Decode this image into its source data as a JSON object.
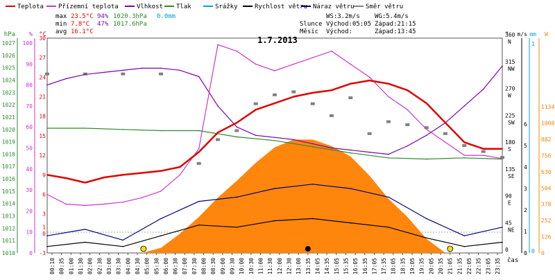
{
  "legend": [
    {
      "label": "Teplota",
      "color": "#e00000"
    },
    {
      "label": "Přízemní teplota",
      "color": "#cc33cc"
    },
    {
      "label": "Vlhkost",
      "color": "#7a00b8"
    },
    {
      "label": "Tlak",
      "color": "#2a8a2a"
    },
    {
      "label": "Srážky",
      "color": "#00a0d8"
    },
    {
      "label": "Rychlost větru",
      "color": "#000000"
    },
    {
      "label": "Náraz větru",
      "color": "#000080"
    },
    {
      "label": "Směr větru",
      "color": "#808080"
    }
  ],
  "stats": {
    "max": {
      "label": "max",
      "temp": "23.5°C",
      "hum": "94%",
      "press": "1020.3hPa",
      "rain": "0.0mm"
    },
    "min": {
      "label": "min",
      "temp": "7.8°C",
      "hum": "47%",
      "press": "1017.6hPa"
    },
    "avg": {
      "label": "avg",
      "temp": "16.1°C"
    }
  },
  "wind": {
    "ws": "WS:3.2m/s",
    "wg": "WG:5.4m/s"
  },
  "sun": {
    "label": "Slunce",
    "rise": "Východ:05:05",
    "set": "Západ:21:15"
  },
  "moon": {
    "label": "Měsíc",
    "rise": "Východ:",
    "set": "Západ:13:45"
  },
  "chart_data": {
    "type": "line",
    "title": "1.7.2013",
    "xlabel": "čas",
    "x_ticks": [
      "00:10",
      "00:35",
      "01:00",
      "01:30",
      "02:00",
      "02:30",
      "03:00",
      "03:30",
      "04:00",
      "04:30",
      "05:00",
      "05:30",
      "06:00",
      "06:30",
      "07:00",
      "07:30",
      "08:00",
      "08:30",
      "09:00",
      "09:30",
      "10:00",
      "10:30",
      "11:00",
      "11:30",
      "12:00",
      "12:30",
      "13:00",
      "13:35",
      "14:05",
      "14:35",
      "15:05",
      "15:35",
      "16:05",
      "16:35",
      "17:05",
      "17:35",
      "18:05",
      "18:35",
      "19:05",
      "19:35",
      "20:05",
      "20:35",
      "21:05",
      "21:35",
      "22:05",
      "22:35",
      "23:05",
      "23:35"
    ],
    "axes": {
      "pressure": {
        "unit": "hPa",
        "range": [
          1010,
          1027
        ],
        "ticks": [
          "1027",
          "1026",
          "1025",
          "1024",
          "1023",
          "1022",
          "1021",
          "1020",
          "1019",
          "1018",
          "1017",
          "1016",
          "1015",
          "1014",
          "1013",
          "1012",
          "1011",
          "1010"
        ]
      },
      "humidity": {
        "unit": "%",
        "range": [
          0,
          100
        ],
        "ticks": [
          "100",
          "90",
          "80",
          "70",
          "60",
          "50",
          "40",
          "30",
          "20",
          "10",
          "0"
        ]
      },
      "temperature": {
        "unit": "°C",
        "range": [
          -3,
          30
        ],
        "ticks": [
          "30",
          "27",
          "24",
          "21",
          "18",
          "15",
          "12",
          "9",
          "6",
          "3",
          "1",
          "0",
          "-3"
        ]
      },
      "direction": {
        "unit": "°",
        "range": [
          0,
          360
        ],
        "ticks": [
          {
            "v": "360",
            "d": "N"
          },
          {
            "v": "315",
            "d": "NW"
          },
          {
            "v": "270",
            "d": "W"
          },
          {
            "v": "225",
            "d": "SW"
          },
          {
            "v": "180",
            "d": "S"
          },
          {
            "v": "135",
            "d": "SE"
          },
          {
            "v": "90",
            "d": "E"
          },
          {
            "v": "45",
            "d": "NE"
          },
          {
            "v": "0",
            "d": ""
          }
        ]
      },
      "wind_speed": {
        "unit": "m/s",
        "range": [
          0,
          6
        ],
        "ticks": [
          "6",
          "5",
          "4",
          "3",
          "2",
          "1",
          "0"
        ]
      },
      "rain": {
        "unit": "mm",
        "ticks": [
          "1",
          "0"
        ]
      },
      "radiation": {
        "unit": "W",
        "range": [
          0,
          1134
        ],
        "ticks": [
          "1134",
          "1008",
          "882",
          "756",
          "630",
          "504",
          "378",
          "252",
          "126",
          "0"
        ]
      }
    },
    "series": [
      {
        "name": "Teplota",
        "axis": "temperature",
        "color": "#e00000",
        "x": [
          0,
          1,
          2,
          3,
          4,
          5,
          6,
          7,
          8,
          9,
          10,
          11,
          12,
          13,
          14,
          15,
          16,
          17,
          18,
          19,
          20,
          21,
          22,
          23,
          24
        ],
        "y": [
          9,
          8.5,
          7.8,
          8.6,
          9,
          9.3,
          9.6,
          10.2,
          12.5,
          15.5,
          17,
          19,
          20,
          21,
          21.6,
          22,
          23,
          23.5,
          23,
          22,
          20,
          17,
          14,
          13,
          13
        ]
      },
      {
        "name": "Přízemní teplota",
        "axis": "temperature",
        "color": "#cc33cc",
        "x": [
          0,
          1,
          2,
          3,
          4,
          5,
          6,
          7,
          8,
          9,
          10,
          11,
          12,
          13,
          14,
          15,
          16,
          17,
          18,
          19,
          20,
          21,
          22,
          23,
          24
        ],
        "y": [
          6,
          4.5,
          4.3,
          4.5,
          4.8,
          5.5,
          6.5,
          9,
          13,
          29,
          28,
          26,
          25,
          26,
          27,
          28,
          26,
          24,
          21,
          19,
          16,
          14,
          12,
          12,
          11.5
        ]
      },
      {
        "name": "Vlhkost",
        "axis": "humidity",
        "color": "#7a00b8",
        "x": [
          0,
          1,
          2,
          3,
          4,
          5,
          6,
          7,
          8,
          9,
          10,
          11,
          12,
          13,
          14,
          15,
          16,
          17,
          18,
          19,
          20,
          21,
          22,
          23,
          24
        ],
        "y": [
          80,
          83,
          85,
          86,
          87,
          88,
          88,
          87,
          84,
          70,
          60,
          56,
          55,
          54,
          52,
          50,
          49,
          48,
          47,
          51,
          56,
          62,
          70,
          78,
          89
        ]
      },
      {
        "name": "Tlak",
        "axis": "pressure",
        "color": "#2a8a2a",
        "x": [
          0,
          2,
          4,
          6,
          8,
          10,
          12,
          14,
          16,
          18,
          20,
          22,
          24
        ],
        "y": [
          1020.1,
          1020.1,
          1020,
          1019.9,
          1019.9,
          1019.4,
          1019.1,
          1018.6,
          1018.1,
          1017.7,
          1017.6,
          1017.7,
          1017.6
        ]
      },
      {
        "name": "Sluneční záření",
        "axis": "radiation",
        "color": "#ff8000",
        "x": [
          5,
          6,
          7,
          8,
          9,
          10,
          11,
          12,
          13,
          14,
          15,
          16,
          17,
          18,
          19,
          20,
          21
        ],
        "y": [
          0,
          40,
          150,
          280,
          430,
          560,
          700,
          820,
          880,
          880,
          830,
          750,
          600,
          420,
          280,
          110,
          0
        ]
      },
      {
        "name": "Rychlost větru",
        "axis": "wind_speed",
        "color": "#000000",
        "x": [
          0,
          2,
          4,
          6,
          8,
          10,
          12,
          14,
          16,
          18,
          20,
          22,
          24
        ],
        "y": [
          0.3,
          0.5,
          0.3,
          0.8,
          1.3,
          1.2,
          1.5,
          1.6,
          1.4,
          1.2,
          0.7,
          0.3,
          0.5
        ]
      },
      {
        "name": "Náraz větru",
        "axis": "wind_speed",
        "color": "#000080",
        "x": [
          0,
          2,
          4,
          6,
          8,
          10,
          12,
          14,
          16,
          18,
          20,
          22,
          24
        ],
        "y": [
          0.8,
          1.1,
          0.6,
          1.6,
          2.4,
          2.6,
          3,
          3.2,
          3,
          2.6,
          1.6,
          0.8,
          1.2
        ]
      },
      {
        "name": "Směr větru",
        "axis": "direction",
        "color": "#808080",
        "x": [
          0,
          2,
          4,
          6,
          8,
          9,
          10,
          11,
          12,
          13,
          14,
          15,
          16,
          17,
          18,
          19,
          20,
          21,
          22,
          23,
          24
        ],
        "y": [
          300,
          300,
          300,
          300,
          150,
          190,
          205,
          250,
          265,
          270,
          250,
          230,
          260,
          200,
          220,
          215,
          210,
          200,
          180,
          170,
          160
        ]
      }
    ]
  }
}
